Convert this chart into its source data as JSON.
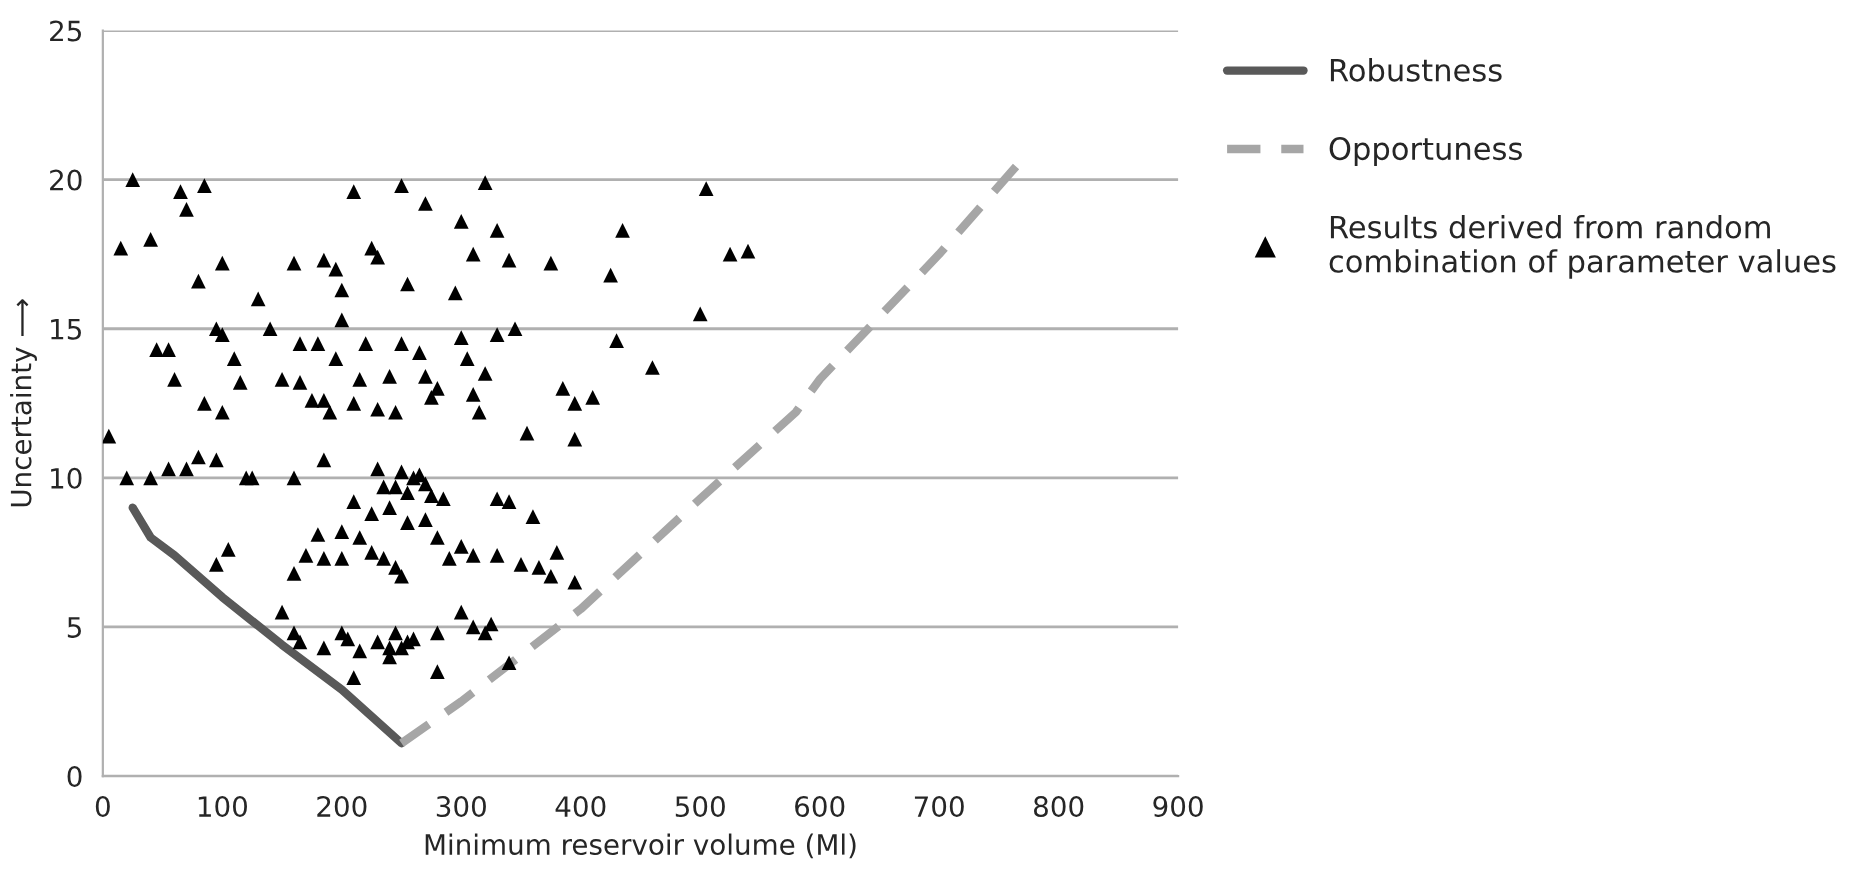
{
  "chart_data": {
    "type": "scatter",
    "xlabel": "Minimum reservoir volume (Ml)",
    "ylabel": "Uncertainty ⟶",
    "xlim": [
      0,
      900
    ],
    "xticks": [
      0,
      100,
      200,
      300,
      400,
      500,
      600,
      700,
      800,
      900
    ],
    "ylim": [
      0,
      25
    ],
    "yticks": [
      0,
      5,
      10,
      15,
      20,
      25
    ],
    "grid": "y",
    "legend": "right",
    "series": [
      {
        "name": "Robustness",
        "type": "line",
        "color": "#595959",
        "line_style": "solid",
        "marker": "none",
        "x": [
          25,
          40,
          60,
          100,
          150,
          200,
          250
        ],
        "values": [
          9,
          8,
          7.4,
          6,
          4.4,
          2.9,
          1.1
        ]
      },
      {
        "name": "Opportuness",
        "type": "line",
        "color": "#a6a6a6",
        "line_style": "dashed",
        "marker": "none",
        "x": [
          250,
          300,
          400,
          500,
          580,
          600,
          700,
          770
        ],
        "values": [
          1.1,
          2.5,
          5.6,
          9.3,
          12.2,
          13.3,
          17.5,
          20.7
        ]
      },
      {
        "name": "Results derived from random\ncombination of parameter values",
        "color": "#000000",
        "marker": "triangle",
        "x": [
          5,
          15,
          25,
          40,
          65,
          70,
          85,
          80,
          100,
          95,
          130,
          160,
          185,
          195,
          200,
          210,
          250,
          270,
          300,
          320,
          330,
          340,
          310,
          295,
          255,
          225,
          230,
          375,
          425,
          435,
          505,
          525,
          540,
          500,
          45,
          55,
          60,
          100,
          110,
          115,
          85,
          100,
          140,
          150,
          165,
          165,
          175,
          180,
          185,
          190,
          195,
          200,
          210,
          215,
          220,
          230,
          240,
          245,
          250,
          265,
          270,
          275,
          280,
          300,
          305,
          310,
          315,
          320,
          330,
          345,
          385,
          395,
          410,
          430,
          460,
          355,
          395,
          20,
          40,
          55,
          70,
          80,
          95,
          120,
          125,
          160,
          185,
          230,
          235,
          245,
          250,
          255,
          260,
          265,
          270,
          275,
          210,
          225,
          240,
          255,
          270,
          280,
          285,
          330,
          340,
          360,
          215,
          200,
          180,
          170,
          95,
          105,
          160,
          185,
          200,
          225,
          235,
          245,
          250,
          300,
          290,
          310,
          330,
          350,
          365,
          380,
          375,
          395,
          150,
          160,
          165,
          185,
          200,
          205,
          215,
          230,
          240,
          245,
          240,
          250,
          255,
          260,
          280,
          300,
          310,
          320,
          325,
          340,
          210,
          280
        ],
        "values": [
          11.4,
          17.7,
          20,
          18,
          19.6,
          19,
          19.8,
          16.6,
          17.2,
          15,
          16,
          17.2,
          17.3,
          17,
          16.3,
          19.6,
          19.8,
          19.2,
          18.6,
          19.9,
          18.3,
          17.3,
          17.5,
          16.2,
          16.5,
          17.7,
          17.4,
          17.2,
          16.8,
          18.3,
          19.7,
          17.5,
          17.6,
          15.5,
          14.3,
          14.3,
          13.3,
          14.8,
          14,
          13.2,
          12.5,
          12.2,
          15,
          13.3,
          14.5,
          13.2,
          12.6,
          14.5,
          12.6,
          12.2,
          14,
          15.3,
          12.5,
          13.3,
          14.5,
          12.3,
          13.4,
          12.2,
          14.5,
          14.2,
          13.4,
          12.7,
          13,
          14.7,
          14,
          12.8,
          12.2,
          13.5,
          14.8,
          15,
          13,
          12.5,
          12.7,
          14.6,
          13.7,
          11.5,
          11.3,
          10,
          10,
          10.3,
          10.3,
          10.7,
          10.6,
          10,
          10,
          10,
          10.6,
          10.3,
          9.7,
          9.7,
          10.2,
          9.5,
          10,
          10.1,
          9.8,
          9.4,
          9.2,
          8.8,
          9,
          8.5,
          8.6,
          8,
          9.3,
          9.3,
          9.2,
          8.7,
          8,
          8.2,
          8.1,
          7.4,
          7.1,
          7.6,
          6.8,
          7.3,
          7.3,
          7.5,
          7.3,
          7,
          6.7,
          7.7,
          7.3,
          7.4,
          7.4,
          7.1,
          7,
          7.5,
          6.7,
          6.5,
          5.5,
          4.8,
          4.5,
          4.3,
          4.8,
          4.6,
          4.2,
          4.5,
          4.3,
          4.8,
          4,
          4.3,
          4.5,
          4.6,
          4.8,
          5.5,
          5,
          4.8,
          5.1,
          3.8,
          3.3,
          3.5
        ]
      }
    ]
  }
}
